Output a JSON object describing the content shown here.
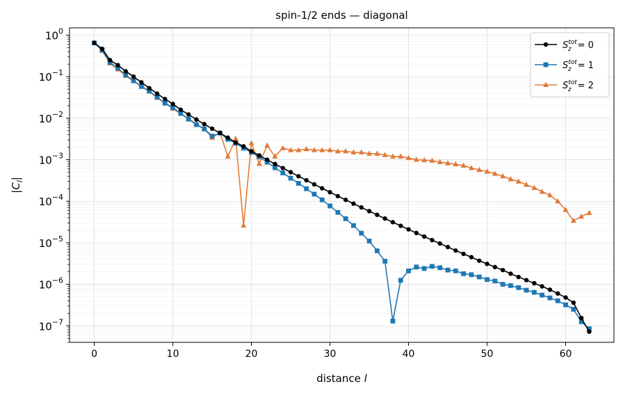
{
  "chart_data": {
    "type": "line",
    "title": "spin-1/2 ends — diagonal",
    "xlabel": "distance l",
    "ylabel": "|C_l|",
    "xlim": [
      -3.15,
      66.15
    ],
    "ylim": [
      4e-08,
      1.5
    ],
    "yscale": "log",
    "grid": true,
    "legend_position": "top-right",
    "x_ticks": [
      0,
      10,
      20,
      30,
      40,
      50,
      60
    ],
    "y_ticks": [
      {
        "value": 1e-07,
        "label": "10^-7"
      },
      {
        "value": 1e-06,
        "label": "10^-6"
      },
      {
        "value": 1e-05,
        "label": "10^-5"
      },
      {
        "value": 0.0001,
        "label": "10^-4"
      },
      {
        "value": 0.001,
        "label": "10^-3"
      },
      {
        "value": 0.01,
        "label": "10^-2"
      },
      {
        "value": 0.1,
        "label": "10^-1"
      },
      {
        "value": 1,
        "label": "10^0"
      }
    ],
    "x": [
      0,
      1,
      2,
      3,
      4,
      5,
      6,
      7,
      8,
      9,
      10,
      11,
      12,
      13,
      14,
      15,
      16,
      17,
      18,
      19,
      20,
      21,
      22,
      23,
      24,
      25,
      26,
      27,
      28,
      29,
      30,
      31,
      32,
      33,
      34,
      35,
      36,
      37,
      38,
      39,
      40,
      41,
      42,
      43,
      44,
      45,
      46,
      47,
      48,
      49,
      50,
      51,
      52,
      53,
      54,
      55,
      56,
      57,
      58,
      59,
      60,
      61,
      62,
      63
    ],
    "series": [
      {
        "name": "S_z^tot = 0",
        "color": "#000000",
        "marker": "circle",
        "values": [
          0.65,
          0.47,
          0.25,
          0.19,
          0.135,
          0.1,
          0.073,
          0.053,
          0.039,
          0.029,
          0.022,
          0.016,
          0.0123,
          0.0093,
          0.0072,
          0.0056,
          0.0044,
          0.0034,
          0.0026,
          0.0021,
          0.0016,
          0.00127,
          0.001,
          0.00079,
          0.00063,
          0.0005,
          0.0004,
          0.00032,
          0.000255,
          0.000205,
          0.000165,
          0.000133,
          0.000108,
          8.75e-05,
          7.1e-05,
          5.78e-05,
          4.7e-05,
          3.83e-05,
          3.13e-05,
          2.56e-05,
          2.1e-05,
          1.72e-05,
          1.41e-05,
          1.16e-05,
          9.6e-06,
          7.9e-06,
          6.5e-06,
          5.4e-06,
          4.5e-06,
          3.7e-06,
          3.1e-06,
          2.6e-06,
          2.2e-06,
          1.8e-06,
          1.5e-06,
          1.26e-06,
          1.06e-06,
          8.9e-07,
          7.4e-07,
          6e-07,
          4.8e-07,
          3.6e-07,
          1.54e-07,
          7.2e-08
        ]
      },
      {
        "name": "S_z^tot = 1",
        "color": "#1f77b4",
        "marker": "square",
        "values": [
          0.65,
          0.44,
          0.22,
          0.16,
          0.11,
          0.08,
          0.058,
          0.045,
          0.032,
          0.023,
          0.018,
          0.013,
          0.0095,
          0.007,
          0.0055,
          0.0037,
          0.0044,
          0.0031,
          0.0025,
          0.0019,
          0.0015,
          0.00118,
          0.00087,
          0.00064,
          0.00048,
          0.00036,
          0.00027,
          0.0002,
          0.000148,
          0.000108,
          7.7e-05,
          5.4e-05,
          3.8e-05,
          2.6e-05,
          1.7e-05,
          1.1e-05,
          6.4e-06,
          3.6e-06,
          1.3e-07,
          1.25e-06,
          2.1e-06,
          2.6e-06,
          2.4e-06,
          2.7e-06,
          2.5e-06,
          2.2e-06,
          2.1e-06,
          1.8e-06,
          1.7e-06,
          1.5e-06,
          1.3e-06,
          1.2e-06,
          1e-06,
          9.3e-07,
          8.3e-07,
          7.2e-07,
          6.4e-07,
          5.5e-07,
          4.7e-07,
          4e-07,
          3.2e-07,
          2.5e-07,
          1.25e-07,
          8.5e-08
        ]
      },
      {
        "name": "S_z^tot = 2",
        "color": "#e07b39",
        "marker": "triangle",
        "values": [
          0.65,
          0.42,
          0.21,
          0.15,
          0.105,
          0.078,
          0.058,
          0.044,
          0.031,
          0.023,
          0.017,
          0.0128,
          0.0097,
          0.0073,
          0.0055,
          0.0034,
          0.0045,
          0.0012,
          0.0032,
          2.6e-05,
          0.0025,
          0.0008,
          0.0022,
          0.0012,
          0.0019,
          0.0017,
          0.0017,
          0.0018,
          0.0017,
          0.0017,
          0.0017,
          0.0016,
          0.0016,
          0.0015,
          0.0015,
          0.0014,
          0.0014,
          0.0013,
          0.0012,
          0.0012,
          0.0011,
          0.001,
          0.00098,
          0.00095,
          0.00088,
          0.00082,
          0.00078,
          0.00072,
          0.00063,
          0.00057,
          0.00052,
          0.00046,
          0.0004,
          0.00034,
          0.0003,
          0.00025,
          0.00021,
          0.00017,
          0.00014,
          0.0001,
          6.2e-05,
          3.4e-05,
          4.3e-05,
          5.2e-05
        ]
      }
    ]
  }
}
